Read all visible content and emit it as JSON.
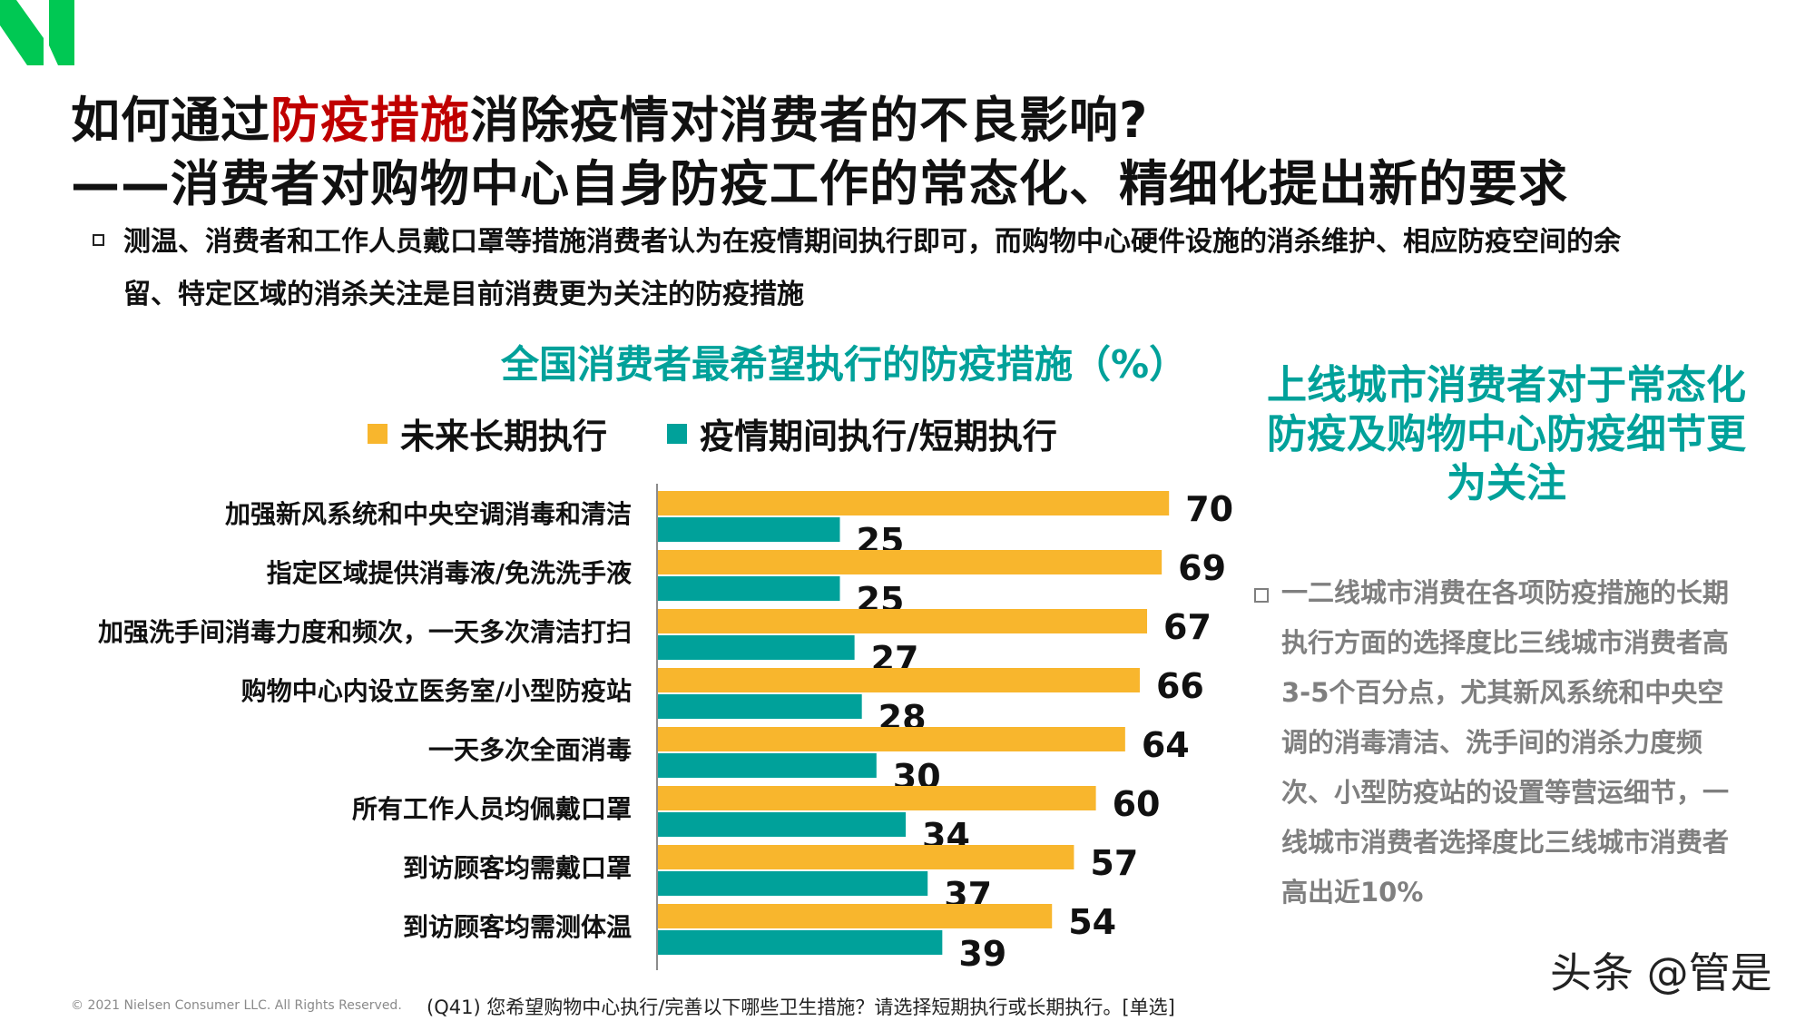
{
  "title": {
    "line1_pre": "如何通过",
    "line1_highlight": "防疫措施",
    "line1_post": "消除疫情对消费者的不良影响?",
    "line2": "——消费者对购物中心自身防疫工作的常态化、精细化提出新的要求"
  },
  "bullet": {
    "line1": "测温、消费者和工作人员戴口罩等措施消费者认为在疫情期间执行即可，而购物中心硬件设施的消杀维护、相应防疫空间的余",
    "line2": "留、特定区域的消杀关注是目前消费更为关注的防疫措施"
  },
  "chart_data": {
    "type": "bar",
    "orientation": "horizontal",
    "title": "全国消费者最希望执行的防疫措施（%）",
    "categories": [
      "加强新风系统和中央空调消毒和清洁",
      "指定区域提供消毒液/免洗洗手液",
      "加强洗手间消毒力度和频次，一天多次清洁打扫",
      "购物中心内设立医务室/小型防疫站",
      "一天多次全面消毒",
      "所有工作人员均佩戴口罩",
      "到访顾客均需戴口罩",
      "到访顾客均需测体温"
    ],
    "series": [
      {
        "name": "未来长期执行",
        "color": "#f8b62d",
        "values": [
          70,
          69,
          67,
          66,
          64,
          60,
          57,
          54
        ]
      },
      {
        "name": "疫情期间执行/短期执行",
        "color": "#00a19a",
        "values": [
          25,
          25,
          27,
          28,
          30,
          34,
          37,
          39
        ]
      }
    ],
    "xlim": [
      0,
      80
    ],
    "grid": false,
    "legend_position": "top"
  },
  "right_panel": {
    "heading": "上线城市消费者对于常态化防疫及购物中心防疫细节更为关注",
    "text": "一二线城市消费在各项防疫措施的长期执行方面的选择度比三线城市消费者高3-5个百分点，尤其新风系统和中央空调的消毒清洁、洗手间的消杀力度频次、小型防疫站的设置等营运细节，一线城市消费者选择度比三线城市消费者高出近10%"
  },
  "footer": {
    "copyright": "© 2021 Nielsen Consumer LLC. All Rights Reserved.",
    "note": "(Q41) 您希望购物中心执行/完善以下哪些卫生措施？请选择短期执行或长期执行。[单选]"
  },
  "watermark": "头条 @管是",
  "colors": {
    "brand_green": "#00a19a",
    "accent_yellow": "#f8b62d",
    "highlight_red": "#c00000",
    "logo_green": "#00c853"
  }
}
